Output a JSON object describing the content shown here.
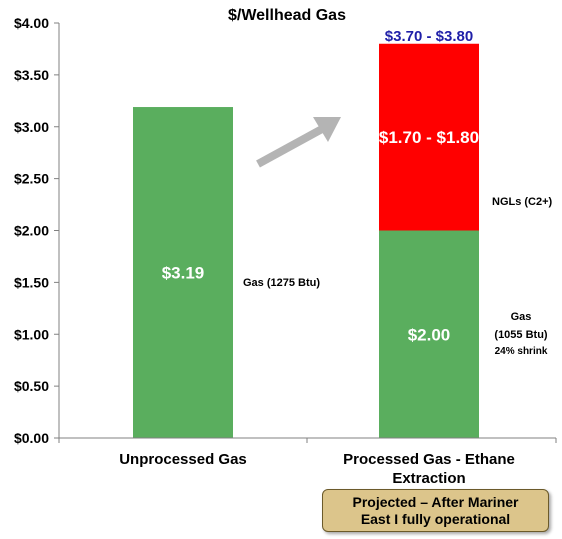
{
  "chart_data": {
    "type": "bar",
    "stacked": true,
    "title": "$/Wellhead Gas",
    "xlabel": "",
    "ylabel": "",
    "ylim": [
      0,
      4
    ],
    "ytick_values": [
      0,
      0.5,
      1,
      1.5,
      2,
      2.5,
      3,
      3.5,
      4
    ],
    "ytick_labels": [
      "$0.00",
      "$0.50",
      "$1.00",
      "$1.50",
      "$2.00",
      "$2.50",
      "$3.00",
      "$3.50",
      "$4.00"
    ],
    "categories": [
      "Unprocessed Gas",
      "Processed Gas - Ethane Extraction"
    ],
    "category_lines": [
      [
        "Unprocessed Gas"
      ],
      [
        "Processed Gas - Ethane",
        "Extraction"
      ]
    ],
    "series": [
      {
        "values": [
          3.19,
          2.0
        ],
        "color": "#5aae5e"
      },
      {
        "values": [
          0,
          1.8
        ],
        "color": "#ff0000"
      }
    ],
    "bar_labels": [
      "$3.19",
      "$2.00",
      "",
      "$1.70 - $1.80"
    ],
    "total_label": "$3.70 - $3.80",
    "total_label_color": "#1f1fa8",
    "grid": false,
    "annotations": {
      "gas_unprocessed": "Gas (1275 Btu)",
      "ngls": "NGLs (C2+)",
      "gas_processed": [
        "Gas",
        "(1055 Btu)"
      ],
      "shrink": "24% shrink"
    },
    "arrow": {
      "color": "#b4b4b4",
      "icon": "up-right-arrow-icon"
    }
  },
  "note": {
    "lines": [
      "Projected – After Mariner",
      "East I fully operational"
    ],
    "color": "#dcc58b"
  }
}
